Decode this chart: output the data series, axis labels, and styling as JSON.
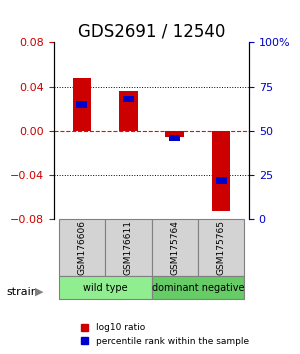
{
  "title": "GDS2691 / 12540",
  "samples": [
    "GSM176606",
    "GSM176611",
    "GSM175764",
    "GSM175765"
  ],
  "log10_ratio": [
    0.048,
    0.036,
    -0.005,
    -0.072
  ],
  "percentile_rank": [
    65,
    68,
    46,
    22
  ],
  "groups": [
    {
      "label": "wild type",
      "samples": [
        0,
        1
      ],
      "color": "#90ee90"
    },
    {
      "label": "dominant negative",
      "samples": [
        2,
        3
      ],
      "color": "#66cc66"
    }
  ],
  "group_label": "strain",
  "ylim_left": [
    -0.08,
    0.08
  ],
  "ylim_right": [
    0,
    100
  ],
  "yticks_left": [
    -0.08,
    -0.04,
    0,
    0.04,
    0.08
  ],
  "yticks_right": [
    0,
    25,
    50,
    75,
    100
  ],
  "ytick_labels_right": [
    "0",
    "25",
    "50",
    "75",
    "100%"
  ],
  "hlines": [
    -0.04,
    0,
    0.04
  ],
  "bar_width": 0.4,
  "bar_color_red": "#cc0000",
  "bar_color_blue": "#0000cc",
  "legend_red_label": "log10 ratio",
  "legend_blue_label": "percentile rank within the sample",
  "background_color": "#ffffff",
  "plot_bg": "#ffffff",
  "title_fontsize": 12,
  "axis_label_color_left": "#cc0000",
  "axis_label_color_right": "#0000cc"
}
